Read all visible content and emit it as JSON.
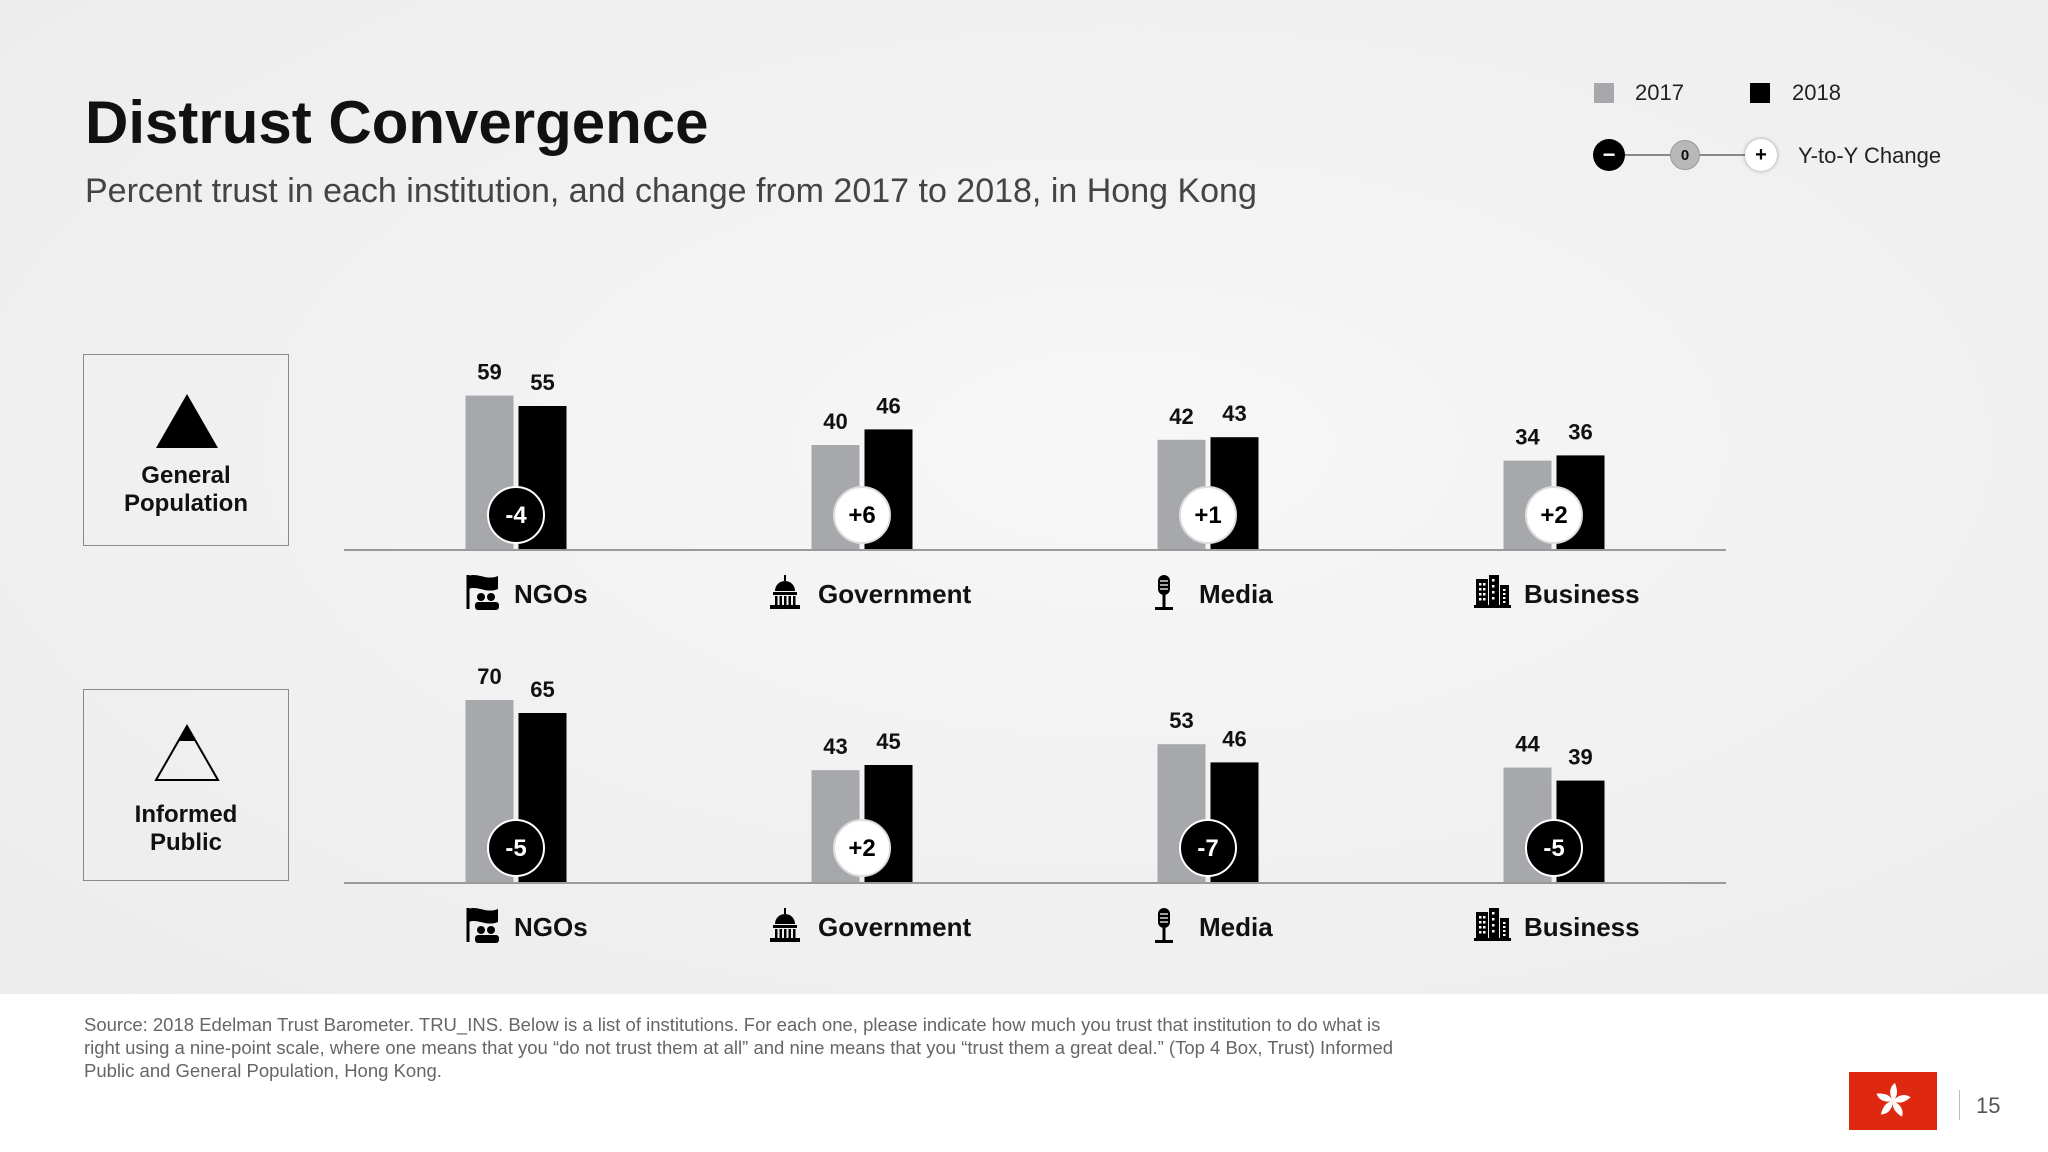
{
  "header": {
    "title": "Distrust Convergence",
    "subtitle": "Percent trust in each institution, and change from 2017 to 2018, in Hong Kong"
  },
  "legend": {
    "items": [
      {
        "label": "2017",
        "color": "#a6a8ac"
      },
      {
        "label": "2018",
        "color": "#000000"
      }
    ],
    "change": {
      "minus": "−",
      "zero": "0",
      "plus": "+",
      "label": "Y-to-Y Change"
    }
  },
  "segments": [
    {
      "line1": "General",
      "line2": "Population",
      "icon": "filled-triangle-icon"
    },
    {
      "line1": "Informed",
      "line2": "Public",
      "icon": "outline-triangle-icon"
    }
  ],
  "chart_data": [
    {
      "type": "bar",
      "segment": "General Population",
      "categories": [
        "NGOs",
        "Government",
        "Media",
        "Business"
      ],
      "series": [
        {
          "name": "2017",
          "values": [
            59,
            40,
            42,
            34
          ]
        },
        {
          "name": "2018",
          "values": [
            55,
            46,
            43,
            36
          ]
        }
      ],
      "change": [
        "-4",
        "+6",
        "+1",
        "+2"
      ],
      "change_style": [
        "negative",
        "positive",
        "positive",
        "positive"
      ],
      "ylim": [
        0,
        100
      ]
    },
    {
      "type": "bar",
      "segment": "Informed Public",
      "categories": [
        "NGOs",
        "Government",
        "Media",
        "Business"
      ],
      "series": [
        {
          "name": "2017",
          "values": [
            70,
            43,
            53,
            44
          ]
        },
        {
          "name": "2018",
          "values": [
            65,
            45,
            46,
            39
          ]
        }
      ],
      "change": [
        "-5",
        "+2",
        "-7",
        "-5"
      ],
      "change_style": [
        "negative",
        "positive",
        "negative",
        "negative"
      ],
      "ylim": [
        0,
        100
      ]
    }
  ],
  "category_icons": [
    "ngo-flag-icon",
    "government-capitol-icon",
    "media-microphone-icon",
    "business-buildings-icon"
  ],
  "footer": {
    "source": "Source: 2018 Edelman Trust Barometer. TRU_INS. Below is a list of institutions. For each one, please indicate how much you trust that institution to do what is right using a nine-point scale, where one means that you “do not trust them at all” and nine means that you “trust them a great deal.” (Top 4 Box, Trust) Informed Public and General Population, Hong Kong.",
    "page_number": "15"
  },
  "colors": {
    "bar_2017": "#a6a8ac",
    "bar_2018": "#000000",
    "negative_circle": "#000000",
    "positive_circle": "#ffffff",
    "flag": "#de2910"
  }
}
